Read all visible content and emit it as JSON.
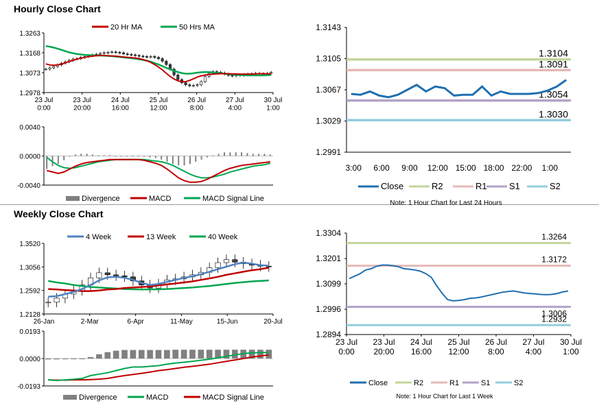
{
  "titles": {
    "hourly": "Hourly Close Chart",
    "weekly": "Weekly Close Chart"
  },
  "chart_data": [
    {
      "id": "hourly-price",
      "type": "candlestick",
      "legend": [
        "20 Hr MA",
        "50 Hrs MA"
      ],
      "colors": {
        "ma20": "#c00000",
        "ma50": "#00a650",
        "candle": "#000000"
      },
      "ylim": [
        1.2978,
        1.3263
      ],
      "yticks": [
        "1.3263",
        "1.3168",
        "1.3073",
        "1.2978"
      ],
      "xticks": [
        "23 Jul\n0:00",
        "23 Jul\n20:00",
        "24 Jul\n16:00",
        "25 Jul\n12:00",
        "26 Jul\n8:00",
        "27 Jul\n4:00",
        "30 Jul\n1:00"
      ],
      "close": [
        1.309,
        1.3096,
        1.3102,
        1.311,
        1.3118,
        1.3125,
        1.3132,
        1.3138,
        1.314,
        1.3146,
        1.315,
        1.3154,
        1.3158,
        1.3161,
        1.3165,
        1.3168,
        1.317,
        1.3172,
        1.317,
        1.3168,
        1.3163,
        1.316,
        1.3158,
        1.3155,
        1.3152,
        1.315,
        1.3148,
        1.315,
        1.3146,
        1.314,
        1.3128,
        1.3112,
        1.309,
        1.3062,
        1.304,
        1.3025,
        1.3015,
        1.301,
        1.3012,
        1.3015,
        1.303,
        1.3055,
        1.307,
        1.3078,
        1.3075,
        1.3072,
        1.3066,
        1.306,
        1.3058,
        1.3062,
        1.306,
        1.3064,
        1.3066,
        1.3068,
        1.307,
        1.3068,
        1.3066,
        1.307,
        1.3074
      ],
      "ma20": [
        1.3115,
        1.311,
        1.3108,
        1.311,
        1.3114,
        1.312,
        1.3126,
        1.3132,
        1.3138,
        1.3142,
        1.3146,
        1.315,
        1.3152,
        1.3154,
        1.3155,
        1.3155,
        1.3154,
        1.3153,
        1.3152,
        1.315,
        1.3148,
        1.3146,
        1.3145,
        1.3143,
        1.314,
        1.3136,
        1.313,
        1.3122,
        1.3112,
        1.31,
        1.3086,
        1.307,
        1.3055,
        1.3043,
        1.3034,
        1.3029,
        1.303,
        1.3036,
        1.3044,
        1.3052,
        1.3058,
        1.3062,
        1.3064,
        1.3066,
        1.3067,
        1.3068,
        1.3068,
        1.3068,
        1.3067,
        1.3067,
        1.3066,
        1.3066,
        1.3066,
        1.3066,
        1.3067,
        1.3068,
        1.3068,
        1.3068,
        1.3068
      ],
      "ma50": [
        1.32,
        1.3197,
        1.3193,
        1.3188,
        1.3182,
        1.3176,
        1.317,
        1.3166,
        1.3162,
        1.316,
        1.3158,
        1.3157,
        1.3156,
        1.3156,
        1.3155,
        1.3154,
        1.3153,
        1.3152,
        1.315,
        1.3148,
        1.3146,
        1.3144,
        1.3142,
        1.314,
        1.3137,
        1.3134,
        1.313,
        1.3125,
        1.3119,
        1.3112,
        1.3104,
        1.3096,
        1.3089,
        1.3082,
        1.3076,
        1.3071,
        1.3068,
        1.3068,
        1.307,
        1.3073,
        1.3075,
        1.3076,
        1.3076,
        1.3074,
        1.3072,
        1.307,
        1.3068,
        1.3066,
        1.3064,
        1.3063,
        1.3062,
        1.3061,
        1.306,
        1.306,
        1.306,
        1.306,
        1.306,
        1.3061,
        1.3062
      ]
    },
    {
      "id": "hourly-macd",
      "type": "macd",
      "legend": [
        "Divergence",
        "MACD",
        "MACD Signal Line"
      ],
      "colors": {
        "divergence": "#808080",
        "macd": "#c00000",
        "signal": "#00a650"
      },
      "ylim": [
        -0.004,
        0.004
      ],
      "yticks": [
        "0.0040",
        "0.0000",
        "-0.0040"
      ],
      "macd": [
        -0.002,
        -0.0022,
        -0.0024,
        -0.0022,
        -0.0018,
        -0.0014,
        -0.0011,
        -0.0009,
        -0.0008,
        -0.0007,
        -0.0006,
        -0.0005,
        -0.0005,
        -0.0005,
        -0.0005,
        -0.0005,
        -0.0005,
        -0.0006,
        -0.0008,
        -0.001,
        -0.0013,
        -0.0018,
        -0.0024,
        -0.003,
        -0.0034,
        -0.0036,
        -0.0036,
        -0.0035,
        -0.0032,
        -0.0028,
        -0.0024,
        -0.002,
        -0.0017,
        -0.0015,
        -0.0013,
        -0.0012,
        -0.0011,
        -0.001,
        -0.0009,
        -0.0008
      ],
      "signal": [
        -0.0002,
        -0.0008,
        -0.0013,
        -0.0016,
        -0.0017,
        -0.0016,
        -0.0014,
        -0.0012,
        -0.001,
        -0.0008,
        -0.0007,
        -0.0006,
        -0.0005,
        -0.0005,
        -0.0005,
        -0.0005,
        -0.0005,
        -0.0005,
        -0.0006,
        -0.0007,
        -0.0008,
        -0.001,
        -0.0013,
        -0.0017,
        -0.0021,
        -0.0025,
        -0.0028,
        -0.003,
        -0.003,
        -0.0029,
        -0.0027,
        -0.0025,
        -0.0022,
        -0.002,
        -0.0018,
        -0.0016,
        -0.0014,
        -0.0013,
        -0.0012,
        -0.001
      ],
      "divergence": [
        -0.0018,
        -0.0014,
        -0.0011,
        -0.0006,
        -0.0001,
        0.0002,
        0.0003,
        0.0003,
        0.0002,
        0.0001,
        0.0001,
        0.0001,
        0.0,
        0.0,
        0.0,
        0.0,
        0.0,
        -0.0001,
        -0.0002,
        -0.0003,
        -0.0005,
        -0.0008,
        -0.0011,
        -0.0013,
        -0.0013,
        -0.0011,
        -0.0008,
        -0.0005,
        -0.0002,
        0.0001,
        0.0003,
        0.0005,
        0.0005,
        0.0005,
        0.0005,
        0.0004,
        0.0003,
        0.0003,
        0.0003,
        0.0002
      ]
    },
    {
      "id": "hourly-levels",
      "type": "line",
      "legend": [
        "Close",
        "R2",
        "R1",
        "S1",
        "S2"
      ],
      "colors": {
        "close": "#1f6fb0",
        "R2": "#c3d69b",
        "R1": "#e6b9b8",
        "S1": "#b3a2c7",
        "S2": "#93cddd"
      },
      "ylim": [
        1.2991,
        1.3143
      ],
      "yticks": [
        "1.3143",
        "1.3105",
        "1.3067",
        "1.3029",
        "1.2991"
      ],
      "xticks": [
        "3:00",
        "6:00",
        "9:00",
        "12:00",
        "15:00",
        "18:00",
        "22:00",
        "1:00"
      ],
      "levels": {
        "R2": "1.3104",
        "R1": "1.3091",
        "S1": "1.3054",
        "S2": "1.3030"
      },
      "close": [
        1.3062,
        1.3061,
        1.3065,
        1.306,
        1.3058,
        1.3061,
        1.3067,
        1.3073,
        1.3065,
        1.3071,
        1.3069,
        1.306,
        1.3061,
        1.3061,
        1.3071,
        1.306,
        1.3065,
        1.3062,
        1.3062,
        1.3062,
        1.3063,
        1.3066,
        1.3071,
        1.3079
      ],
      "note": "Note: 1 Hour Chart for Last 24 Hours"
    },
    {
      "id": "weekly-price",
      "type": "candlestick",
      "legend": [
        "4 Week",
        "13 Week",
        "40 Week"
      ],
      "colors": {
        "ma4": "#4f81bd",
        "ma13": "#c00000",
        "ma40": "#00a650",
        "candle": "#000000"
      },
      "ylim": [
        1.2128,
        1.352
      ],
      "yticks": [
        "1.3520",
        "1.3056",
        "1.2592",
        "1.2128"
      ],
      "xticks": [
        "26-Jan",
        "2-Mar",
        "6-Apr",
        "11-May",
        "15-Jun",
        "20-Jul"
      ],
      "close": [
        1.236,
        1.244,
        1.252,
        1.259,
        1.27,
        1.284,
        1.294,
        1.29,
        1.288,
        1.286,
        1.278,
        1.27,
        1.264,
        1.272,
        1.28,
        1.282,
        1.286,
        1.29,
        1.295,
        1.304,
        1.314,
        1.32,
        1.315,
        1.312,
        1.309,
        1.307,
        1.306
      ],
      "ma4": [
        1.247,
        1.248,
        1.252,
        1.256,
        1.262,
        1.27,
        1.279,
        1.285,
        1.286,
        1.284,
        1.28,
        1.274,
        1.27,
        1.272,
        1.276,
        1.28,
        1.284,
        1.287,
        1.291,
        1.296,
        1.301,
        1.306,
        1.311,
        1.314,
        1.312,
        1.309,
        1.308
      ],
      "ma13": [
        1.262,
        1.261,
        1.26,
        1.259,
        1.258,
        1.258,
        1.259,
        1.261,
        1.262,
        1.264,
        1.265,
        1.266,
        1.267,
        1.269,
        1.271,
        1.273,
        1.275,
        1.277,
        1.28,
        1.283,
        1.286,
        1.29,
        1.293,
        1.296,
        1.299,
        1.301,
        1.304
      ],
      "ma40": [
        1.278,
        1.275,
        1.273,
        1.27,
        1.268,
        1.266,
        1.265,
        1.264,
        1.263,
        1.262,
        1.2615,
        1.2612,
        1.2612,
        1.2615,
        1.262,
        1.263,
        1.264,
        1.265,
        1.2665,
        1.268,
        1.27,
        1.272,
        1.274,
        1.2755,
        1.277,
        1.278,
        1.279
      ]
    },
    {
      "id": "weekly-macd",
      "type": "macd",
      "legend": [
        "Divergence",
        "MACD",
        "MACD Signal Line"
      ],
      "colors": {
        "divergence": "#808080",
        "macd": "#00a650",
        "signal": "#c00000"
      },
      "ylim": [
        -0.0193,
        0.0193
      ],
      "yticks": [
        "0.0193",
        "0.0000",
        "-0.0193"
      ],
      "macd": [
        -0.015,
        -0.0155,
        -0.015,
        -0.0146,
        -0.014,
        -0.012,
        -0.011,
        -0.01,
        -0.0085,
        -0.007,
        -0.006,
        -0.006,
        -0.0055,
        -0.005,
        -0.004,
        -0.0032,
        -0.0026,
        -0.002,
        -0.0012,
        -0.0005,
        0.0005,
        0.0015,
        0.0025,
        0.0035,
        0.004,
        0.0042,
        0.0042
      ],
      "signal": [
        -0.015,
        -0.0152,
        -0.0152,
        -0.015,
        -0.015,
        -0.0148,
        -0.0145,
        -0.014,
        -0.013,
        -0.012,
        -0.0112,
        -0.0104,
        -0.0095,
        -0.0085,
        -0.0078,
        -0.007,
        -0.0062,
        -0.0055,
        -0.0048,
        -0.004,
        -0.003,
        -0.002,
        -0.001,
        0.0,
        0.001,
        0.0018,
        0.0025
      ],
      "divergence": [
        -0.0006,
        -0.0006,
        -0.0005,
        -0.0004,
        -0.0003,
        0.001,
        0.003,
        0.0045,
        0.0055,
        0.006,
        0.006,
        0.006,
        0.006,
        0.006,
        0.006,
        0.0062,
        0.0062,
        0.0062,
        0.0062,
        0.0062,
        0.0062,
        0.0062,
        0.0062,
        0.0062,
        0.0062,
        0.0062,
        0.0062
      ]
    },
    {
      "id": "weekly-levels",
      "type": "line",
      "legend": [
        "Close",
        "R2",
        "R1",
        "S1",
        "S2"
      ],
      "colors": {
        "close": "#1f6fb0",
        "R2": "#c3d69b",
        "R1": "#e6b9b8",
        "S1": "#b3a2c7",
        "S2": "#93cddd"
      },
      "ylim": [
        1.2894,
        1.3304
      ],
      "yticks": [
        "1.3304",
        "1.3201",
        "1.3099",
        "1.2996",
        "1.2894"
      ],
      "xticks": [
        "23 Jul\n0:00",
        "23 Jul\n20:00",
        "24 Jul\n16:00",
        "25 Jul\n12:00",
        "26 Jul\n8:00",
        "27 Jul\n4:00",
        "30 Jul\n1:00"
      ],
      "levels": {
        "R2": "1.3264",
        "R1": "1.3172",
        "S1": "1.3006",
        "S2": "1.2932"
      },
      "close": [
        1.312,
        1.313,
        1.314,
        1.3155,
        1.316,
        1.317,
        1.3175,
        1.3175,
        1.3172,
        1.3168,
        1.316,
        1.3158,
        1.3155,
        1.315,
        1.314,
        1.3125,
        1.309,
        1.306,
        1.3035,
        1.303,
        1.3032,
        1.3035,
        1.304,
        1.3042,
        1.3045,
        1.305,
        1.3055,
        1.306,
        1.3065,
        1.3068,
        1.307,
        1.3066,
        1.3062,
        1.306,
        1.3058,
        1.3056,
        1.3055,
        1.3056,
        1.306,
        1.3066,
        1.307
      ],
      "note": "Note: 1 Hour Chart for Last 1 Week"
    }
  ]
}
